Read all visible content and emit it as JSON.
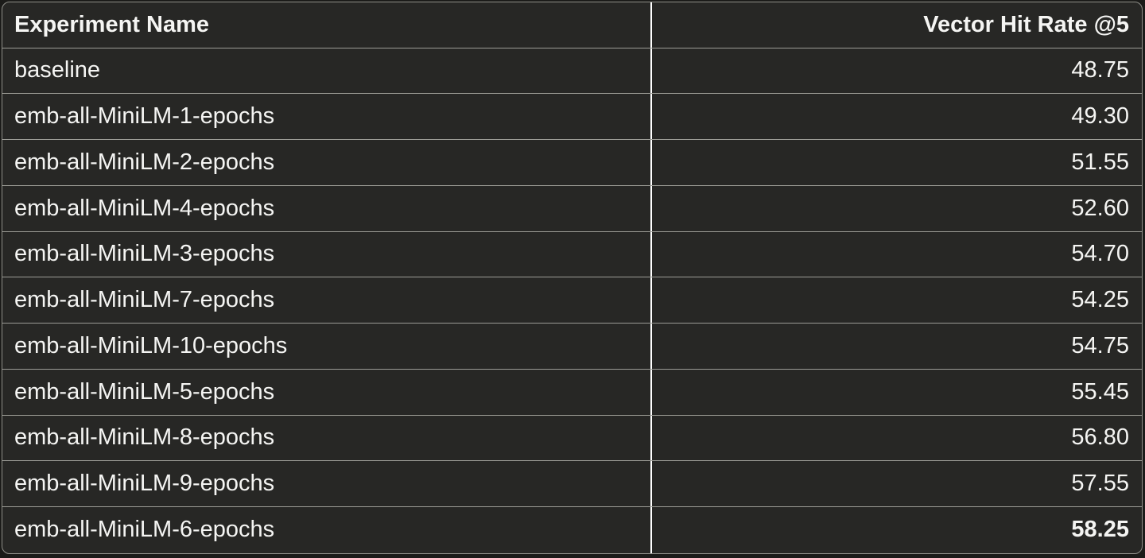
{
  "table": {
    "columns": [
      {
        "label": "Experiment Name",
        "align": "left"
      },
      {
        "label": "Vector Hit Rate @5",
        "align": "right"
      }
    ],
    "rows": [
      {
        "name": "baseline",
        "value": "48.75"
      },
      {
        "name": "emb-all-MiniLM-1-epochs",
        "value": "49.30"
      },
      {
        "name": "emb-all-MiniLM-2-epochs",
        "value": "51.55"
      },
      {
        "name": "emb-all-MiniLM-4-epochs",
        "value": "52.60"
      },
      {
        "name": "emb-all-MiniLM-3-epochs",
        "value": "54.70"
      },
      {
        "name": "emb-all-MiniLM-7-epochs",
        "value": "54.25"
      },
      {
        "name": "emb-all-MiniLM-10-epochs",
        "value": "54.75"
      },
      {
        "name": "emb-all-MiniLM-5-epochs",
        "value": "55.45"
      },
      {
        "name": "emb-all-MiniLM-8-epochs",
        "value": "56.80"
      },
      {
        "name": "emb-all-MiniLM-9-epochs",
        "value": "57.55"
      },
      {
        "name": "emb-all-MiniLM-6-epochs",
        "value": "58.25",
        "emphasis": "bold-max-value"
      }
    ],
    "colors": {
      "page_background": "#1b1b19",
      "cell_background": "#272725",
      "row_separator": "#9c9c96",
      "table_border": "#8f8f89",
      "column_divider": "#ffffff",
      "text": "#f5f5f3"
    }
  }
}
